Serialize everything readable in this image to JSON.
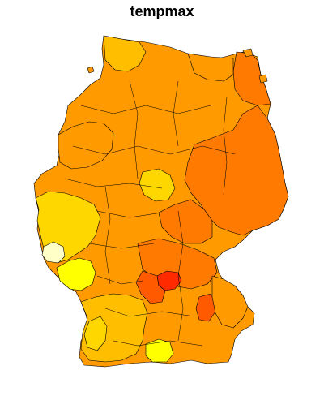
{
  "map": {
    "title": "tempmax",
    "colors": {
      "lowest": "#ffffc8",
      "yellow": "#ffff00",
      "yellow_orange": "#ffd700",
      "light_orange": "#ffbf00",
      "orange": "#ff9a00",
      "dark_orange": "#ff7a00",
      "red_orange": "#ff5a00",
      "highest": "#ff2a00"
    }
  }
}
